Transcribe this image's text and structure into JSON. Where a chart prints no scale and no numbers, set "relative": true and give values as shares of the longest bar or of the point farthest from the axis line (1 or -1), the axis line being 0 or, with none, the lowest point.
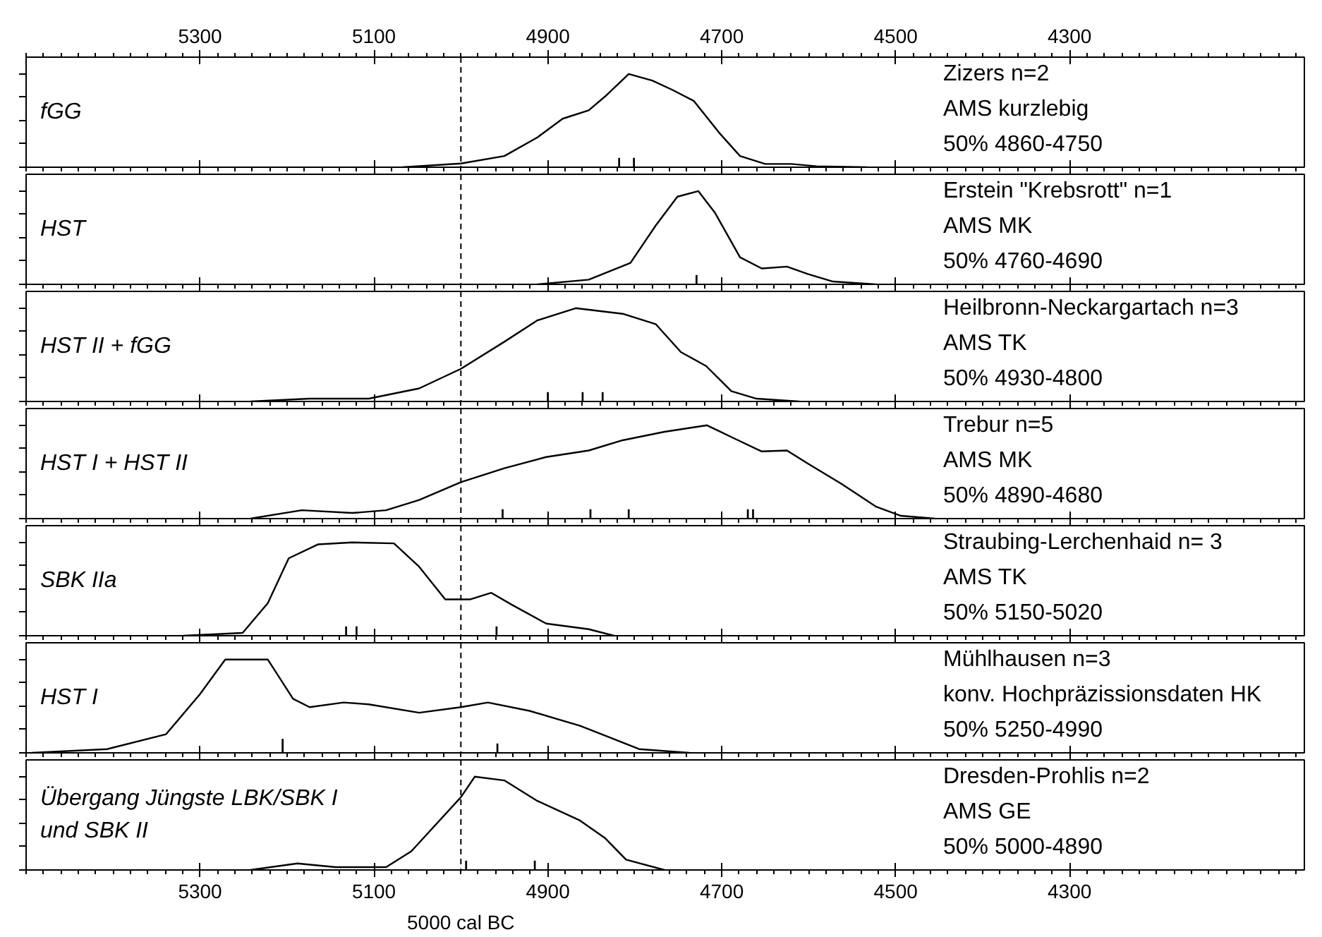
{
  "chart_data": [
    {
      "type": "line",
      "title": "fGG",
      "annotations": [
        "Zizers n=2",
        "AMS kurzlebig",
        "50% 4860-4750"
      ],
      "relative": true,
      "xlim": [
        5500,
        4030
      ],
      "xticks": [
        5300,
        5100,
        4900,
        4700,
        4500,
        4300
      ],
      "x2lim": [
        5500,
        4030
      ],
      "x2ticks": [
        5300,
        5100,
        4900,
        4700,
        4500,
        4300
      ],
      "tick_labels": false,
      "ref_lines": [
        {
          "axis": "x",
          "value": 5000,
          "line_style": "dashed"
        }
      ],
      "series": [
        {
          "color": "#000000",
          "x": [
            5067,
            5000,
            4950,
            4912,
            4883,
            4853,
            4834,
            4807,
            4780,
            4757,
            4732,
            4703,
            4679,
            4650,
            4620,
            4591,
            4533
          ],
          "values": [
            0,
            0.04,
            0.12,
            0.32,
            0.52,
            0.61,
            0.76,
            1.0,
            0.93,
            0.83,
            0.71,
            0.37,
            0.12,
            0.035,
            0.035,
            0.01,
            0
          ]
        },
        {
          "type": "bar",
          "color": "#000000",
          "x": [
            4818,
            4801
          ],
          "values": [
            0.1,
            0.1
          ]
        }
      ]
    },
    {
      "type": "line",
      "title": "HST",
      "annotations": [
        "Erstein \"Krebsrott\" n=1",
        "AMS MK",
        "50% 4760-4690"
      ],
      "relative": true,
      "xlim": [
        5500,
        4030
      ],
      "xticks": [
        5300,
        5100,
        4900,
        4700,
        4500,
        4300
      ],
      "tick_labels": false,
      "ref_lines": [
        {
          "axis": "x",
          "value": 5000,
          "line_style": "dashed"
        }
      ],
      "series": [
        {
          "color": "#000000",
          "x": [
            4912,
            4853,
            4805,
            4776,
            4751,
            4727,
            4708,
            4679,
            4654,
            4625,
            4601,
            4572,
            4523
          ],
          "values": [
            0,
            0.05,
            0.23,
            0.63,
            0.94,
            1.0,
            0.77,
            0.29,
            0.17,
            0.19,
            0.11,
            0.03,
            0
          ]
        },
        {
          "type": "bar",
          "color": "#000000",
          "x": [
            4729
          ],
          "values": [
            0.1
          ]
        }
      ]
    },
    {
      "type": "line",
      "title": "HST II + fGG",
      "annotations": [
        "Heilbronn-Neckargartach n=3",
        "AMS TK",
        "50% 4930-4800"
      ],
      "relative": true,
      "xlim": [
        5500,
        4030
      ],
      "xticks": [
        5300,
        5100,
        4900,
        4700,
        4500,
        4300
      ],
      "tick_labels": false,
      "ref_lines": [
        {
          "axis": "x",
          "value": 5000,
          "line_style": "dashed"
        }
      ],
      "series": [
        {
          "color": "#000000",
          "x": [
            5242,
            5174,
            5106,
            5048,
            5000,
            4950,
            4912,
            4868,
            4814,
            4776,
            4747,
            4718,
            4689,
            4660,
            4611
          ],
          "values": [
            0,
            0.03,
            0.03,
            0.14,
            0.35,
            0.64,
            0.87,
            1.0,
            0.94,
            0.83,
            0.53,
            0.38,
            0.11,
            0.03,
            0
          ]
        },
        {
          "type": "bar",
          "color": "#000000",
          "x": [
            4900,
            4860,
            4837
          ],
          "values": [
            0.1,
            0.1,
            0.1
          ]
        }
      ]
    },
    {
      "type": "line",
      "title": "HST I + HST II",
      "annotations": [
        "Trebur n=5",
        "AMS MK",
        "50% 4890-4680"
      ],
      "relative": true,
      "xlim": [
        5500,
        4030
      ],
      "xticks": [
        5300,
        5100,
        4900,
        4700,
        4500,
        4300
      ],
      "tick_labels": false,
      "ref_lines": [
        {
          "axis": "x",
          "value": 5000,
          "line_style": "dashed"
        }
      ],
      "series": [
        {
          "color": "#000000",
          "x": [
            5242,
            5183,
            5125,
            5086,
            5048,
            5000,
            4950,
            4902,
            4853,
            4814,
            4766,
            4717,
            4688,
            4654,
            4625,
            4601,
            4562,
            4523,
            4494,
            4455
          ],
          "values": [
            0,
            0.09,
            0.06,
            0.09,
            0.2,
            0.39,
            0.54,
            0.66,
            0.73,
            0.84,
            0.93,
            1.0,
            0.87,
            0.72,
            0.73,
            0.59,
            0.37,
            0.13,
            0.03,
            0
          ]
        },
        {
          "type": "bar",
          "color": "#000000",
          "x": [
            4952,
            4851,
            4807,
            4670,
            4664
          ],
          "values": [
            0.1,
            0.1,
            0.1,
            0.1,
            0.1
          ]
        }
      ]
    },
    {
      "type": "line",
      "title": "SBK IIa",
      "annotations": [
        "Straubing-Lerchenhaid n= 3",
        "AMS TK",
        "50% 5150-5020"
      ],
      "relative": true,
      "xlim": [
        5500,
        4030
      ],
      "xticks": [
        5300,
        5100,
        4900,
        4700,
        4500,
        4300
      ],
      "tick_labels": false,
      "ref_lines": [
        {
          "axis": "x",
          "value": 5000,
          "line_style": "dashed"
        }
      ],
      "series": [
        {
          "color": "#000000",
          "x": [
            5319,
            5251,
            5222,
            5198,
            5164,
            5125,
            5077,
            5048,
            5018,
            4989,
            4965,
            4941,
            4902,
            4853,
            4824
          ],
          "values": [
            0,
            0.03,
            0.35,
            0.83,
            0.98,
            1.0,
            0.99,
            0.74,
            0.39,
            0.39,
            0.46,
            0.33,
            0.13,
            0.07,
            0
          ]
        },
        {
          "type": "bar",
          "color": "#000000",
          "x": [
            5132,
            5120,
            4959
          ],
          "values": [
            0.1,
            0.1,
            0.1
          ]
        }
      ]
    },
    {
      "type": "line",
      "title": "HST I",
      "annotations": [
        "Mühlhausen n=3",
        "konv. Hochpräzissionsdaten HK",
        "50% 5250-4990"
      ],
      "relative": true,
      "xlim": [
        5500,
        4030
      ],
      "xticks": [
        5300,
        5100,
        4900,
        4700,
        4500,
        4300
      ],
      "tick_labels": false,
      "ref_lines": [
        {
          "axis": "x",
          "value": 5000,
          "line_style": "dashed"
        }
      ],
      "series": [
        {
          "color": "#000000",
          "x": [
            5494,
            5407,
            5339,
            5300,
            5271,
            5222,
            5193,
            5174,
            5135,
            5106,
            5048,
            5000,
            4969,
            4921,
            4863,
            4833,
            4795,
            4737
          ],
          "values": [
            0,
            0.04,
            0.2,
            0.63,
            1.0,
            1.0,
            0.58,
            0.49,
            0.54,
            0.52,
            0.43,
            0.49,
            0.54,
            0.45,
            0.29,
            0.18,
            0.04,
            0
          ]
        },
        {
          "type": "bar",
          "color": "#000000",
          "x": [
            5205,
            4958
          ],
          "values": [
            0.15,
            0.1
          ]
        }
      ]
    },
    {
      "type": "line",
      "title": "Übergang Jüngste LBK/SBK I\nund SBK II",
      "annotations": [
        "Dresden-Prohlis n=2",
        "AMS GE",
        "50% 5000-4890"
      ],
      "relative": true,
      "xlim": [
        5500,
        4030
      ],
      "xticks": [
        5300,
        5100,
        4900,
        4700,
        4500,
        4300
      ],
      "tick_labels": "x",
      "ref_lines": [
        {
          "axis": "x",
          "value": 5000,
          "label": "5000 cal BC",
          "line_style": "dashed"
        }
      ],
      "series": [
        {
          "color": "#000000",
          "x": [
            5242,
            5188,
            5144,
            5086,
            5057,
            5000,
            4984,
            4950,
            4912,
            4863,
            4834,
            4810,
            4766
          ],
          "values": [
            0,
            0.07,
            0.03,
            0.03,
            0.2,
            0.78,
            1.0,
            0.96,
            0.74,
            0.53,
            0.34,
            0.11,
            0
          ]
        },
        {
          "type": "bar",
          "color": "#000000",
          "x": [
            4994,
            4915
          ],
          "values": [
            0.1,
            0.1
          ]
        }
      ]
    }
  ]
}
